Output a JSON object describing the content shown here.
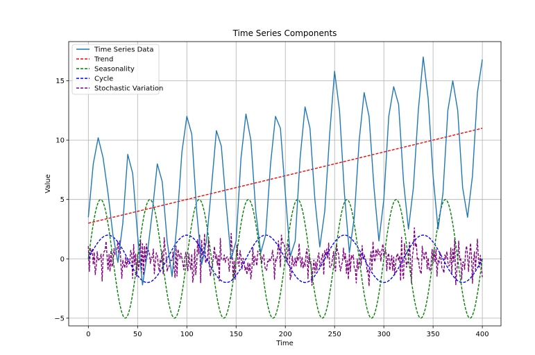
{
  "chart_data": {
    "type": "line",
    "title": "Time Series Components",
    "xlabel": "Time",
    "ylabel": "Value",
    "xlim": [
      -19.95,
      418.95
    ],
    "ylim": [
      -5.65,
      18.3
    ],
    "xticks": [
      0,
      50,
      100,
      150,
      200,
      250,
      300,
      350,
      400
    ],
    "yticks": [
      -5,
      0,
      5,
      10,
      15
    ],
    "grid": true,
    "legend_position": "upper-left",
    "series": [
      {
        "name": "Time Series Data",
        "color": "#1f77b4",
        "style": "solid",
        "x": [
          0,
          5,
          10,
          15,
          20,
          25,
          30,
          35,
          40,
          45,
          50,
          55,
          60,
          65,
          70,
          75,
          80,
          85,
          90,
          95,
          100,
          105,
          110,
          115,
          120,
          125,
          130,
          135,
          140,
          145,
          150,
          155,
          160,
          165,
          170,
          175,
          180,
          185,
          190,
          195,
          200,
          205,
          210,
          215,
          220,
          225,
          230,
          235,
          240,
          245,
          250,
          255,
          260,
          265,
          270,
          275,
          280,
          285,
          290,
          295,
          300,
          305,
          310,
          315,
          320,
          325,
          330,
          335,
          340,
          345,
          350,
          355,
          360,
          365,
          370,
          375,
          380,
          385,
          390,
          395,
          400
        ],
        "y": [
          3.5,
          8.0,
          10.2,
          8.5,
          5.5,
          2.0,
          -0.3,
          3.0,
          8.8,
          7.2,
          2.0,
          -2.2,
          0.5,
          4.0,
          8.0,
          6.5,
          1.5,
          -1.5,
          3.0,
          9.0,
          12.0,
          10.5,
          4.0,
          -0.5,
          1.5,
          6.0,
          10.8,
          9.5,
          4.5,
          0.0,
          1.5,
          8.5,
          12.2,
          10.0,
          4.0,
          0.5,
          2.0,
          8.0,
          12.0,
          11.0,
          5.5,
          0.2,
          1.5,
          8.5,
          12.8,
          11.0,
          5.0,
          1.0,
          4.0,
          10.5,
          15.8,
          12.5,
          5.5,
          0.5,
          3.5,
          10.0,
          14.0,
          12.0,
          6.0,
          1.5,
          5.0,
          12.0,
          14.5,
          13.0,
          6.5,
          2.5,
          6.0,
          12.5,
          17.0,
          13.5,
          7.0,
          2.5,
          5.5,
          12.5,
          15.0,
          12.5,
          6.0,
          3.5,
          7.0,
          14.0,
          16.8
        ]
      },
      {
        "name": "Trend",
        "color": "#ff0000",
        "style": "dashed",
        "x": [
          0,
          400
        ],
        "y": [
          3.0,
          11.0
        ]
      },
      {
        "name": "Seasonality",
        "color": "#008000",
        "style": "dashed",
        "function": {
          "kind": "sine",
          "amplitude": 5,
          "period": 50,
          "offset": 0,
          "x_start": 0,
          "x_end": 400,
          "step": 1
        }
      },
      {
        "name": "Cycle",
        "color": "#0000ff",
        "style": "dashed",
        "function": {
          "kind": "sine",
          "amplitude": 2,
          "period": 80,
          "offset": 0,
          "x_start": 0,
          "x_end": 400,
          "step": 2
        }
      },
      {
        "name": "Stochastic Variation",
        "color": "#800080",
        "style": "dashed",
        "noise": {
          "kind": "random",
          "std": 1.0,
          "min": -3.3,
          "max": 3.5,
          "x_start": 0,
          "x_end": 400,
          "seed": 7
        }
      }
    ]
  }
}
